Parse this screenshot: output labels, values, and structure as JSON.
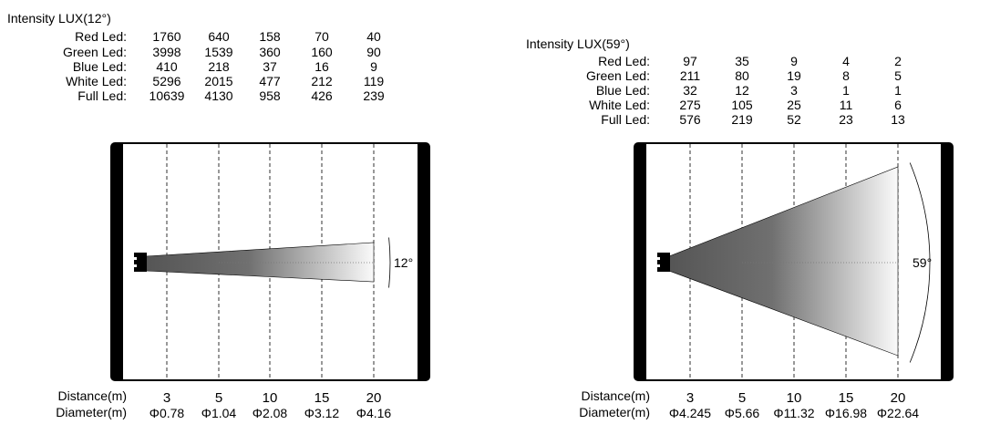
{
  "panels": [
    {
      "title": "Intensity LUX(12°)",
      "beam_angle_label": "12°",
      "beam_angle_deg": 12,
      "rows": [
        {
          "label": "Red Led:",
          "values": [
            "1760",
            "640",
            "158",
            "70",
            "40"
          ]
        },
        {
          "label": "Green Led:",
          "values": [
            "3998",
            "1539",
            "360",
            "160",
            "90"
          ]
        },
        {
          "label": "Blue Led:",
          "values": [
            "410",
            "218",
            "37",
            "16",
            "9"
          ]
        },
        {
          "label": "White Led:",
          "values": [
            "5296",
            "2015",
            "477",
            "212",
            "119"
          ]
        },
        {
          "label": "Full Led:",
          "values": [
            "10639",
            "4130",
            "958",
            "426",
            "239"
          ]
        }
      ],
      "distance_label": "Distance(m)",
      "distances": [
        "3",
        "5",
        "10",
        "15",
        "20"
      ],
      "diameter_label": "Diameter(m)",
      "diameters": [
        "Φ0.78",
        "Φ1.04",
        "Φ2.08",
        "Φ3.12",
        "Φ4.16"
      ]
    },
    {
      "title": "Intensity LUX(59°)",
      "beam_angle_label": "59°",
      "beam_angle_deg": 59,
      "rows": [
        {
          "label": "Red Led:",
          "values": [
            "97",
            "35",
            "9",
            "4",
            "2"
          ]
        },
        {
          "label": "Green Led:",
          "values": [
            "211",
            "80",
            "19",
            "8",
            "5"
          ]
        },
        {
          "label": "Blue Led:",
          "values": [
            "32",
            "12",
            "3",
            "1",
            "1"
          ]
        },
        {
          "label": "White Led:",
          "values": [
            "275",
            "105",
            "25",
            "11",
            "6"
          ]
        },
        {
          "label": "Full Led:",
          "values": [
            "576",
            "219",
            "52",
            "23",
            "13"
          ]
        }
      ],
      "distance_label": "Distance(m)",
      "distances": [
        "3",
        "5",
        "10",
        "15",
        "20"
      ],
      "diameter_label": "Diameter(m)",
      "diameters": [
        "Φ4.245",
        "Φ5.66",
        "Φ11.32",
        "Φ16.98",
        "Φ22.64"
      ]
    }
  ]
}
